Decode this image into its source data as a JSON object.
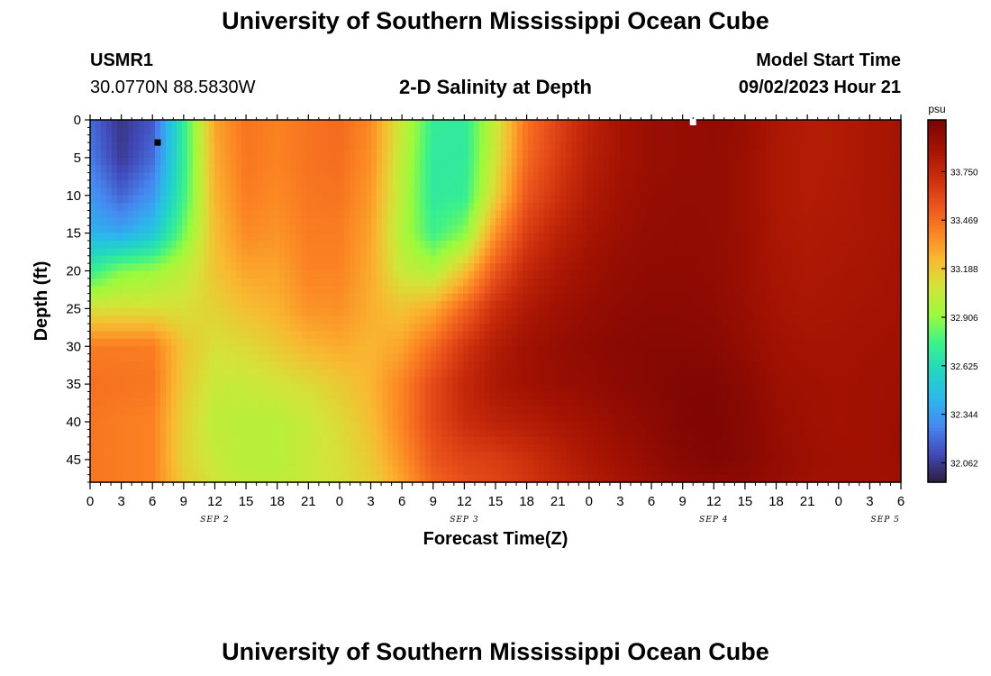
{
  "page": {
    "title": "University of Southern Mississippi Ocean Cube",
    "footer_title": "University of Southern Mississippi Ocean Cube",
    "station_id": "USMR1",
    "station_coords": "30.0770N  88.5830W",
    "plot_title": "2-D Salinity at Depth",
    "model_start_label": "Model Start Time",
    "model_start_value": "09/02/2023 Hour 21"
  },
  "chart_data": {
    "type": "heatmap",
    "title": "2-D Salinity at Depth",
    "xlabel": "Forecast Time(Z)",
    "ylabel": "Depth (ft)",
    "x_hours": [
      0,
      3,
      6,
      9,
      12,
      15,
      18,
      21,
      24,
      27,
      30,
      33,
      36,
      39,
      42,
      45,
      48,
      51,
      54,
      57,
      60,
      63,
      66,
      69,
      72,
      75,
      78
    ],
    "x_tick_labels": [
      "0",
      "3",
      "6",
      "9",
      "12",
      "15",
      "18",
      "21",
      "0",
      "3",
      "6",
      "9",
      "12",
      "15",
      "18",
      "21",
      "0",
      "3",
      "6",
      "9",
      "12",
      "15",
      "18",
      "21",
      "0",
      "3",
      "6"
    ],
    "date_labels": [
      {
        "label": "SEP 2",
        "hour": 12
      },
      {
        "label": "SEP 3",
        "hour": 36
      },
      {
        "label": "SEP 4",
        "hour": 60
      },
      {
        "label": "SEP 5",
        "hour": 76.5
      }
    ],
    "xlim": [
      0,
      78
    ],
    "y_ticks": [
      0,
      5,
      10,
      15,
      20,
      25,
      30,
      35,
      40,
      45
    ],
    "y_tick_labels": [
      "0",
      "5",
      "10",
      "15",
      "20",
      "25",
      "30",
      "35",
      "40",
      "45"
    ],
    "ylim": [
      48,
      0
    ],
    "depths_ft": [
      0,
      5,
      10,
      15,
      20,
      25,
      30,
      35,
      40,
      45,
      48
    ],
    "salinity_psu": [
      [
        32.2,
        32.04,
        32.15,
        32.72,
        33.3,
        33.45,
        33.4,
        33.45,
        33.48,
        33.38,
        33.05,
        32.72,
        32.7,
        33.05,
        33.45,
        33.62,
        33.78,
        33.88,
        33.93,
        33.94,
        33.96,
        33.93,
        33.86,
        33.82,
        33.83,
        33.86,
        33.88
      ],
      [
        32.25,
        32.06,
        32.2,
        32.72,
        33.28,
        33.44,
        33.4,
        33.45,
        33.47,
        33.36,
        33.02,
        32.7,
        32.7,
        33.08,
        33.48,
        33.65,
        33.8,
        33.88,
        33.93,
        33.94,
        33.95,
        33.92,
        33.85,
        33.82,
        33.83,
        33.86,
        33.88
      ],
      [
        32.33,
        32.18,
        32.32,
        32.75,
        33.25,
        33.42,
        33.38,
        33.44,
        33.45,
        33.33,
        33.0,
        32.7,
        32.72,
        33.15,
        33.55,
        33.7,
        33.83,
        33.9,
        33.94,
        33.95,
        33.95,
        33.92,
        33.85,
        33.82,
        33.84,
        33.86,
        33.88
      ],
      [
        32.42,
        32.38,
        32.5,
        32.85,
        33.22,
        33.38,
        33.35,
        33.42,
        33.42,
        33.3,
        32.98,
        32.75,
        32.88,
        33.35,
        33.65,
        33.78,
        33.87,
        33.92,
        33.95,
        33.96,
        33.95,
        33.92,
        33.86,
        33.84,
        33.85,
        33.86,
        33.88
      ],
      [
        32.72,
        32.88,
        32.92,
        33.02,
        33.2,
        33.3,
        33.3,
        33.4,
        33.4,
        33.28,
        33.05,
        32.98,
        33.2,
        33.55,
        33.75,
        33.85,
        33.91,
        33.95,
        33.97,
        33.97,
        33.96,
        33.92,
        33.87,
        33.85,
        33.86,
        33.87,
        33.89
      ],
      [
        33.1,
        33.1,
        33.1,
        33.1,
        33.15,
        33.22,
        33.26,
        33.35,
        33.36,
        33.27,
        33.2,
        33.28,
        33.5,
        33.72,
        33.84,
        33.9,
        33.94,
        33.97,
        33.98,
        33.98,
        33.97,
        33.93,
        33.88,
        33.86,
        33.87,
        33.88,
        33.89
      ],
      [
        33.42,
        33.42,
        33.42,
        33.2,
        33.1,
        33.12,
        33.18,
        33.25,
        33.28,
        33.25,
        33.3,
        33.48,
        33.68,
        33.82,
        33.9,
        33.94,
        33.97,
        33.99,
        34.0,
        34.0,
        33.99,
        33.95,
        33.9,
        33.88,
        33.88,
        33.89,
        33.9
      ],
      [
        33.46,
        33.45,
        33.44,
        33.18,
        33.05,
        33.05,
        33.08,
        33.12,
        33.18,
        33.25,
        33.4,
        33.6,
        33.75,
        33.85,
        33.9,
        33.93,
        33.95,
        33.98,
        34.0,
        34.02,
        34.02,
        33.98,
        33.92,
        33.9,
        33.89,
        33.9,
        33.91
      ],
      [
        33.44,
        33.42,
        33.4,
        33.15,
        33.02,
        33.0,
        33.0,
        33.05,
        33.12,
        33.22,
        33.4,
        33.6,
        33.72,
        33.78,
        33.82,
        33.86,
        33.9,
        33.94,
        33.98,
        34.02,
        34.03,
        34.0,
        33.94,
        33.91,
        33.89,
        33.9,
        33.92
      ],
      [
        33.44,
        33.42,
        33.4,
        33.15,
        33.05,
        33.0,
        33.0,
        33.05,
        33.1,
        33.18,
        33.35,
        33.55,
        33.62,
        33.65,
        33.7,
        33.78,
        33.85,
        33.9,
        33.95,
        34.0,
        34.02,
        34.0,
        33.95,
        33.92,
        33.9,
        33.9,
        33.92
      ],
      [
        33.44,
        33.42,
        33.4,
        33.18,
        33.08,
        33.02,
        33.02,
        33.05,
        33.1,
        33.15,
        33.3,
        33.5,
        33.58,
        33.62,
        33.68,
        33.75,
        33.82,
        33.88,
        33.92,
        33.96,
        33.98,
        33.97,
        33.94,
        33.91,
        33.9,
        33.9,
        33.91
      ]
    ],
    "colorbar": {
      "unit_label": "psu",
      "min": 31.95,
      "max": 34.05,
      "tick_values": [
        33.75,
        33.469,
        33.188,
        32.906,
        32.625,
        32.344,
        32.062
      ],
      "tick_labels": [
        "33.750",
        "33.469",
        "33.188",
        "32.906",
        "32.625",
        "32.344",
        "32.062"
      ],
      "palette": [
        "#2d1e3e",
        "#4149b8",
        "#4687f0",
        "#2bb8ec",
        "#22d7c2",
        "#3cf289",
        "#9cfa3c",
        "#d2e538",
        "#f9b831",
        "#fb8122",
        "#e9511b",
        "#c82b0b",
        "#a31202",
        "#7a0403"
      ]
    },
    "markers": [
      {
        "hour": 6.5,
        "depth_ft": 3,
        "color": "#000000"
      },
      {
        "hour": 58.0,
        "depth_ft": 0.3,
        "color": "#ffffff"
      }
    ]
  }
}
